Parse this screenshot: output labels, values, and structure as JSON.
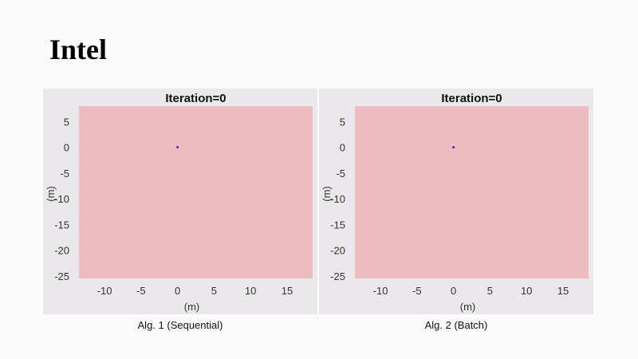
{
  "slide": {
    "title": "Intel"
  },
  "colors": {
    "map_fill": "#ecbcc0",
    "panel_bg": "#eae8ea",
    "robot_marker": "#2222cc"
  },
  "chart_data": [
    {
      "type": "scatter",
      "title": "Iteration=0",
      "caption": "Alg. 1 (Sequential)",
      "xlabel": "(m)",
      "ylabel": "(m)",
      "xlim": [
        -13.5,
        18.5
      ],
      "ylim": [
        -25.5,
        8
      ],
      "xticks": [
        -10,
        -5,
        0,
        5,
        10,
        15
      ],
      "yticks": [
        5,
        0,
        -5,
        -10,
        -15,
        -20,
        -25
      ],
      "points": [
        {
          "x": 0,
          "y": 0
        }
      ],
      "grid": false
    },
    {
      "type": "scatter",
      "title": "Iteration=0",
      "caption": "Alg. 2 (Batch)",
      "xlabel": "(m)",
      "ylabel": "(m)",
      "xlim": [
        -13.5,
        18.5
      ],
      "ylim": [
        -25.5,
        8
      ],
      "xticks": [
        -10,
        -5,
        0,
        5,
        10,
        15
      ],
      "yticks": [
        5,
        0,
        -5,
        -10,
        -15,
        -20,
        -25
      ],
      "points": [
        {
          "x": 0,
          "y": 0
        }
      ],
      "grid": false
    }
  ]
}
